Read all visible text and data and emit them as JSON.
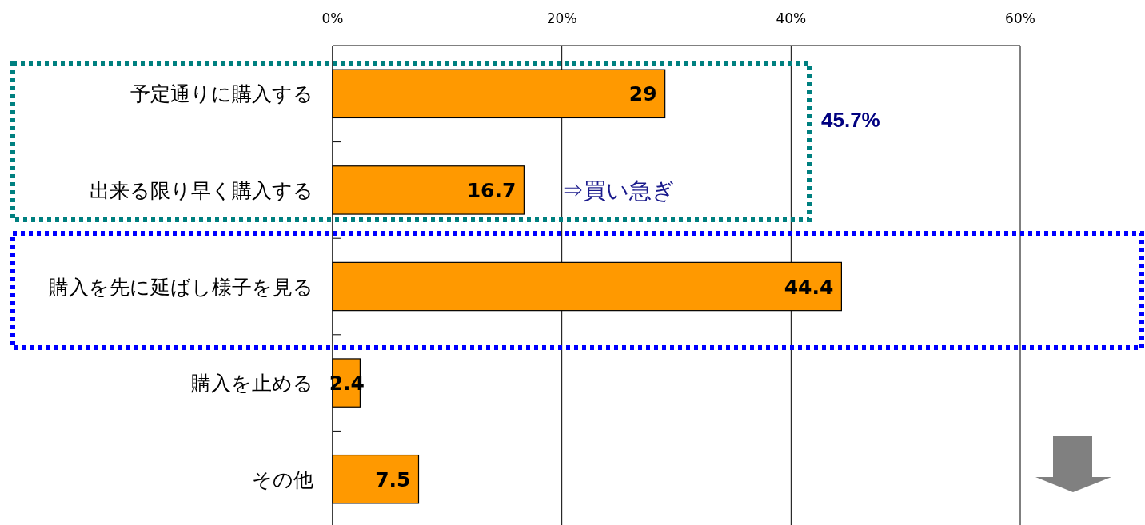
{
  "chart_data": {
    "type": "bar",
    "orientation": "horizontal",
    "categories": [
      "予定通りに購入する",
      "出来る限り早く購入する",
      "購入を先に延ばし様子を見る",
      "購入を止める",
      "その他"
    ],
    "values": [
      29,
      16.7,
      44.4,
      2.4,
      7.5
    ],
    "color": "#ff9900",
    "xlim": [
      0,
      60
    ],
    "xticks": [
      {
        "value": 0,
        "label": "0%"
      },
      {
        "value": 20,
        "label": "20%"
      },
      {
        "value": 40,
        "label": "40%"
      },
      {
        "value": 60,
        "label": "60%"
      }
    ],
    "grid": "x",
    "data_labels": true,
    "annotations": [
      "45.7%",
      "⇒買い急ぎ"
    ]
  }
}
